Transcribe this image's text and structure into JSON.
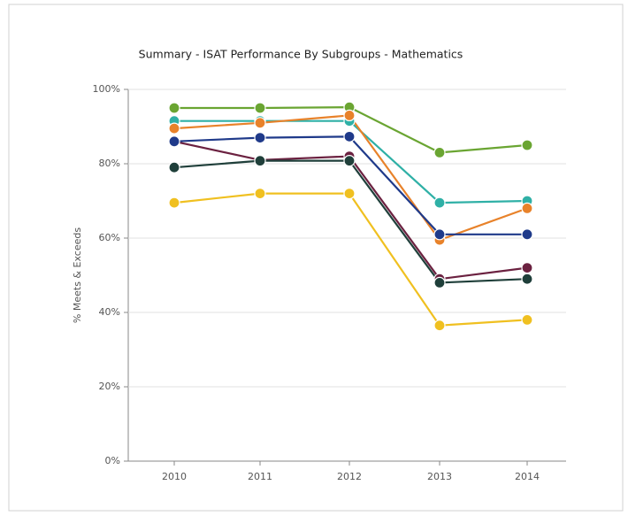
{
  "chart_data": {
    "type": "line",
    "title": "Summary - ISAT Performance By Subgroups - Mathematics",
    "y_label": "% Meets & Exceeds",
    "categories": [
      "2010",
      "2011",
      "2012",
      "2013",
      "2014"
    ],
    "series": [
      {
        "color": "#6aa532",
        "values": [
          95,
          95,
          95.2,
          83,
          85
        ]
      },
      {
        "color": "#2fb0a6",
        "values": [
          91.5,
          91.5,
          91.5,
          69.5,
          70
        ]
      },
      {
        "color": "#e8822a",
        "values": [
          89.5,
          91,
          93,
          59.5,
          68
        ]
      },
      {
        "color": "#6b2140",
        "values": [
          86,
          81,
          82,
          49,
          52
        ]
      },
      {
        "color": "#1f3a8a",
        "values": [
          86,
          87,
          87.3,
          61,
          61
        ]
      },
      {
        "color": "#1f3f3a",
        "values": [
          79,
          80.8,
          80.8,
          48,
          49
        ]
      },
      {
        "color": "#f0c020",
        "values": [
          69.5,
          72,
          72,
          36.5,
          38
        ]
      }
    ],
    "ylim": [
      0,
      100
    ],
    "yticks": [
      {
        "value": 0,
        "label": "0%"
      },
      {
        "value": 20,
        "label": "20%"
      },
      {
        "value": 40,
        "label": "40%"
      },
      {
        "value": 60,
        "label": "60%"
      },
      {
        "value": 80,
        "label": "80%"
      },
      {
        "value": 100,
        "label": "100%"
      }
    ],
    "grid": true
  }
}
